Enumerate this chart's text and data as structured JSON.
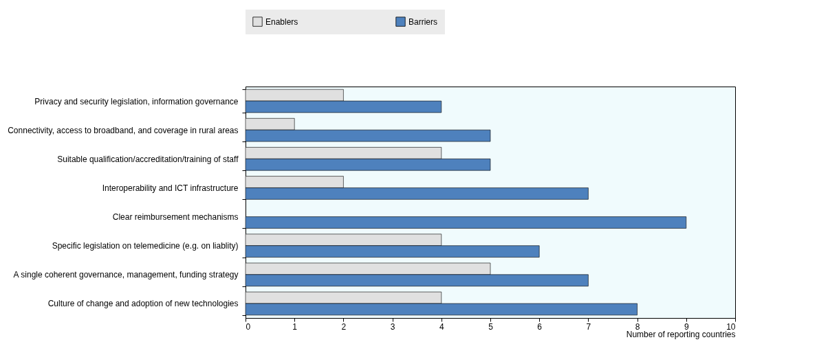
{
  "chart_data": {
    "type": "bar",
    "orientation": "horizontal",
    "xlabel": "Number of reporting countries",
    "categories": [
      "Privacy and security legislation, information governance",
      "Connectivity, access to broadband, and coverage in rural areas",
      "Suitable qualification/accreditation/training of staff",
      "Interoperability and ICT infrastructure",
      "Clear reimbursement mechanisms",
      "Specific legislation on telemedicine (e.g. on liablity)",
      "A single coherent governance, management, funding strategy",
      "Culture of change and adoption of new technologies"
    ],
    "series": [
      {
        "name": "Enablers",
        "color": "#e0e0e0",
        "values": [
          2,
          1,
          4,
          2,
          0,
          4,
          5,
          4
        ]
      },
      {
        "name": "Barriers",
        "color": "#4e81bd",
        "values": [
          4,
          5,
          5,
          7,
          9,
          6,
          7,
          8
        ]
      }
    ],
    "xlim": [
      0,
      10
    ],
    "xticks": [
      0,
      1,
      2,
      3,
      4,
      5,
      6,
      7,
      8,
      9,
      10
    ],
    "grid": false,
    "legend": "top"
  }
}
